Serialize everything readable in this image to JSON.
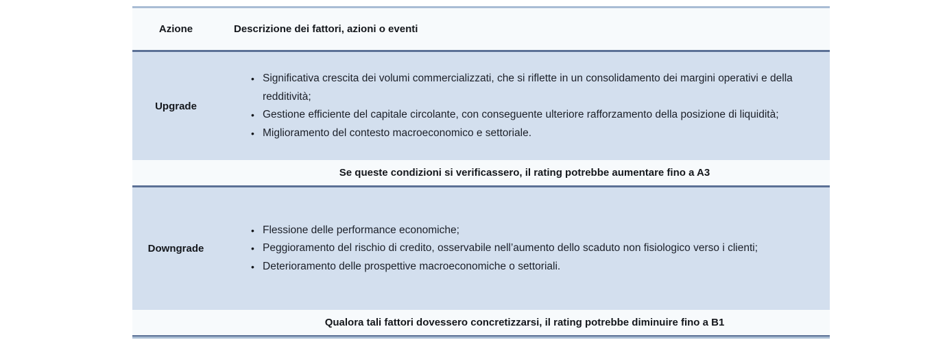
{
  "table": {
    "header": {
      "action_col": "Azione",
      "description_col": "Descrizione dei fattori, azioni o eventi"
    },
    "rows": [
      {
        "action": "Upgrade",
        "bullets": [
          "Significativa crescita dei volumi commercializzati, che si riflette in un consolidamento dei margini operativi e della redditività;",
          "Gestione efficiente del capitale circolante, con conseguente ulteriore rafforzamento della posizione di liquidità;",
          "Miglioramento del contesto macroeconomico e settoriale."
        ]
      },
      {
        "note": "Se queste condizioni si verificassero, il rating potrebbe aumentare fino a A3"
      },
      {
        "action": "Downgrade",
        "bullets": [
          "Flessione delle performance economiche;",
          "Peggioramento del rischio di credito, osservabile nell’aumento dello scaduto non fisiologico verso i clienti;",
          "Deterioramento delle prospettive macroeconomiche o settoriali."
        ]
      },
      {
        "note": "Qualora tali fattori dovessero concretizzarsi, il rating potrebbe diminuire fino a B1"
      }
    ],
    "bullet_glyph": "•",
    "colors": {
      "row_blue": "#d3dfee",
      "row_light": "#f7fafc",
      "border_dark": "#5b7095",
      "border_light": "#a9bdd4"
    }
  }
}
